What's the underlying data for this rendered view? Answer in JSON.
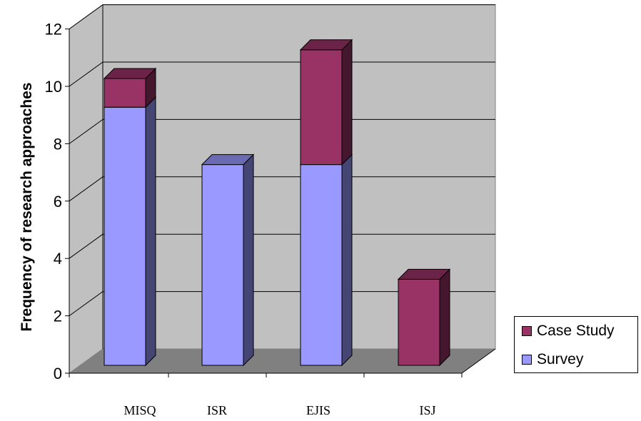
{
  "chart_data": {
    "type": "bar",
    "stacked": true,
    "three_d": true,
    "categories": [
      "MISQ",
      "ISR",
      "EJIS",
      "ISJ"
    ],
    "series": [
      {
        "name": "Survey",
        "values": [
          9,
          7,
          7,
          0
        ],
        "color": "#9999ff"
      },
      {
        "name": "Case Study",
        "values": [
          1,
          0,
          4,
          3
        ],
        "color": "#993366"
      }
    ],
    "ylabel": "Frequency of research approaches",
    "xlabel": "",
    "ylim": [
      0,
      12
    ],
    "yticks": [
      0,
      2,
      4,
      6,
      8,
      10,
      12
    ],
    "grid": true,
    "legend": "right",
    "colors": {
      "wall": "#c0c0c0",
      "floor": "#808080",
      "gridline": "#000000"
    }
  }
}
